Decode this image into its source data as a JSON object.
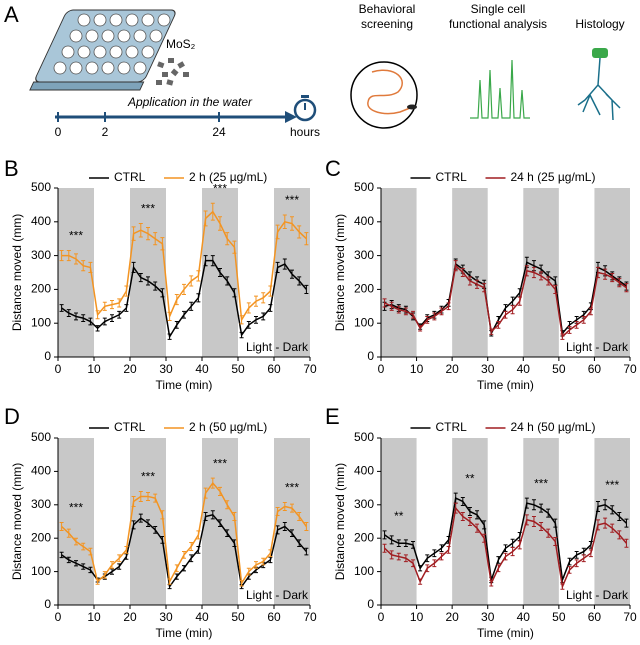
{
  "schematic": {
    "panel": "A",
    "compound": "MoS₂",
    "timeline_label": "Application in the water",
    "timeline_ticks": [
      "0",
      "2",
      "24"
    ],
    "timeline_unit": "hours",
    "methods": [
      [
        "Behavioral",
        "screening"
      ],
      [
        "Single cell",
        "functional analysis"
      ],
      [
        "Histology"
      ]
    ]
  },
  "chart_data": [
    {
      "type": "line",
      "panel": "B",
      "x_label": "Time (min)",
      "y_label": "Distance moved (mm)",
      "annotation_box": "Light - Dark",
      "dark_periods": [
        [
          0,
          10
        ],
        [
          20,
          30
        ],
        [
          40,
          50
        ],
        [
          60,
          70
        ]
      ],
      "annotations": [
        "***",
        "***",
        "***",
        "***"
      ],
      "xlim": [
        0,
        70
      ],
      "ylim": [
        0,
        500
      ],
      "xticks": [
        0,
        10,
        20,
        30,
        40,
        50,
        60,
        70
      ],
      "yticks": [
        0,
        100,
        200,
        300,
        400,
        500
      ],
      "x": [
        1,
        3,
        5,
        7,
        9,
        11,
        13,
        15,
        17,
        19,
        21,
        23,
        25,
        27,
        29,
        31,
        33,
        35,
        37,
        39,
        41,
        43,
        45,
        47,
        49,
        51,
        53,
        55,
        57,
        59,
        61,
        63,
        65,
        67,
        69
      ],
      "series": [
        {
          "name": "CTRL",
          "color": "#000000",
          "values": [
            145,
            130,
            120,
            115,
            105,
            85,
            105,
            115,
            125,
            145,
            265,
            235,
            225,
            210,
            190,
            60,
            95,
            125,
            150,
            175,
            285,
            285,
            250,
            225,
            190,
            65,
            95,
            110,
            120,
            145,
            265,
            275,
            245,
            225,
            200
          ],
          "errors": [
            10,
            10,
            10,
            10,
            10,
            8,
            10,
            10,
            10,
            10,
            15,
            12,
            12,
            12,
            12,
            8,
            10,
            10,
            12,
            12,
            15,
            15,
            12,
            12,
            12,
            8,
            10,
            10,
            10,
            10,
            15,
            15,
            12,
            12,
            12
          ]
        },
        {
          "name": "2 h (25 µg/mL)",
          "color": "#f39422",
          "values": [
            300,
            300,
            290,
            270,
            265,
            125,
            150,
            155,
            160,
            195,
            365,
            375,
            365,
            350,
            335,
            120,
            170,
            200,
            225,
            240,
            410,
            430,
            395,
            350,
            325,
            110,
            145,
            165,
            175,
            195,
            370,
            400,
            395,
            370,
            350
          ],
          "errors": [
            15,
            15,
            15,
            15,
            15,
            12,
            12,
            12,
            12,
            15,
            20,
            20,
            18,
            18,
            18,
            12,
            15,
            15,
            15,
            15,
            22,
            25,
            20,
            18,
            18,
            12,
            15,
            15,
            15,
            15,
            20,
            20,
            20,
            18,
            18
          ]
        }
      ]
    },
    {
      "type": "line",
      "panel": "C",
      "x_label": "Time (min)",
      "y_label": "Distance moved (mm)",
      "annotation_box": "Light - Dark",
      "dark_periods": [
        [
          0,
          10
        ],
        [
          20,
          30
        ],
        [
          40,
          50
        ],
        [
          60,
          70
        ]
      ],
      "annotations": [],
      "xlim": [
        0,
        70
      ],
      "ylim": [
        0,
        500
      ],
      "xticks": [
        0,
        10,
        20,
        30,
        40,
        50,
        60,
        70
      ],
      "yticks": [
        0,
        100,
        200,
        300,
        400,
        500
      ],
      "x": [
        1,
        3,
        5,
        7,
        9,
        11,
        13,
        15,
        17,
        19,
        21,
        23,
        25,
        27,
        29,
        31,
        33,
        35,
        37,
        39,
        41,
        43,
        45,
        47,
        49,
        51,
        53,
        55,
        57,
        59,
        61,
        63,
        65,
        67,
        69
      ],
      "series": [
        {
          "name": "CTRL",
          "color": "#000000",
          "values": [
            150,
            155,
            145,
            140,
            120,
            90,
            115,
            125,
            140,
            160,
            275,
            260,
            240,
            225,
            215,
            70,
            110,
            145,
            165,
            190,
            280,
            270,
            260,
            240,
            225,
            70,
            95,
            110,
            125,
            150,
            265,
            255,
            240,
            225,
            210
          ],
          "errors": [
            12,
            12,
            10,
            10,
            10,
            8,
            10,
            10,
            10,
            10,
            15,
            12,
            12,
            12,
            12,
            8,
            10,
            10,
            12,
            12,
            15,
            15,
            12,
            12,
            12,
            8,
            10,
            10,
            10,
            10,
            15,
            15,
            12,
            12,
            12
          ]
        },
        {
          "name": "24 h (25 µg/mL)",
          "color": "#a11d21",
          "values": [
            160,
            150,
            140,
            135,
            125,
            85,
            110,
            120,
            135,
            150,
            270,
            250,
            225,
            215,
            205,
            75,
            95,
            125,
            140,
            165,
            255,
            250,
            240,
            225,
            200,
            60,
            80,
            95,
            110,
            135,
            250,
            245,
            235,
            220,
            205
          ],
          "errors": [
            12,
            12,
            10,
            10,
            10,
            8,
            10,
            10,
            10,
            10,
            15,
            12,
            12,
            12,
            12,
            8,
            10,
            10,
            12,
            12,
            15,
            15,
            12,
            12,
            12,
            8,
            10,
            10,
            10,
            10,
            15,
            15,
            12,
            12,
            12
          ]
        }
      ]
    },
    {
      "type": "line",
      "panel": "D",
      "x_label": "Time (min)",
      "y_label": "Distance moved (mm)",
      "annotation_box": "Light - Dark",
      "dark_periods": [
        [
          0,
          10
        ],
        [
          20,
          30
        ],
        [
          40,
          50
        ],
        [
          60,
          70
        ]
      ],
      "annotations": [
        "***",
        "***",
        "***",
        "***"
      ],
      "xlim": [
        0,
        70
      ],
      "ylim": [
        0,
        500
      ],
      "xticks": [
        0,
        10,
        20,
        30,
        40,
        50,
        60,
        70
      ],
      "yticks": [
        0,
        100,
        200,
        300,
        400,
        500
      ],
      "x": [
        1,
        3,
        5,
        7,
        9,
        11,
        13,
        15,
        17,
        19,
        21,
        23,
        25,
        27,
        29,
        31,
        33,
        35,
        37,
        39,
        41,
        43,
        45,
        47,
        49,
        51,
        53,
        55,
        57,
        59,
        61,
        63,
        65,
        67,
        69
      ],
      "series": [
        {
          "name": "CTRL",
          "color": "#000000",
          "values": [
            150,
            135,
            125,
            115,
            105,
            75,
            85,
            100,
            115,
            145,
            240,
            260,
            245,
            225,
            195,
            55,
            85,
            110,
            140,
            165,
            265,
            270,
            245,
            215,
            185,
            55,
            85,
            105,
            120,
            135,
            225,
            235,
            215,
            185,
            160
          ],
          "errors": [
            8,
            8,
            8,
            8,
            8,
            6,
            8,
            8,
            8,
            8,
            12,
            12,
            10,
            10,
            10,
            6,
            8,
            8,
            10,
            10,
            12,
            12,
            10,
            10,
            10,
            6,
            8,
            8,
            8,
            8,
            12,
            12,
            10,
            10,
            10
          ]
        },
        {
          "name": "2 h (50 µg/mL)",
          "color": "#f39422",
          "values": [
            235,
            215,
            190,
            175,
            160,
            70,
            90,
            120,
            140,
            165,
            310,
            325,
            325,
            320,
            270,
            70,
            110,
            150,
            175,
            210,
            335,
            365,
            340,
            300,
            265,
            65,
            100,
            120,
            130,
            155,
            280,
            295,
            290,
            265,
            235
          ],
          "errors": [
            12,
            12,
            10,
            10,
            10,
            8,
            10,
            10,
            10,
            10,
            15,
            15,
            12,
            12,
            12,
            8,
            10,
            10,
            12,
            12,
            15,
            15,
            12,
            12,
            12,
            8,
            10,
            10,
            10,
            10,
            12,
            12,
            12,
            12,
            12
          ]
        }
      ]
    },
    {
      "type": "line",
      "panel": "E",
      "x_label": "Time (min)",
      "y_label": "Distance moved (mm)",
      "annotation_box": "Light - Dark",
      "dark_periods": [
        [
          0,
          10
        ],
        [
          20,
          30
        ],
        [
          40,
          50
        ],
        [
          60,
          70
        ]
      ],
      "annotations": [
        "**",
        "**",
        "***",
        "***"
      ],
      "xlim": [
        0,
        70
      ],
      "ylim": [
        0,
        500
      ],
      "xticks": [
        0,
        10,
        20,
        30,
        40,
        50,
        60,
        70
      ],
      "yticks": [
        0,
        100,
        200,
        300,
        400,
        500
      ],
      "x": [
        1,
        3,
        5,
        7,
        9,
        11,
        13,
        15,
        17,
        19,
        21,
        23,
        25,
        27,
        29,
        31,
        33,
        35,
        37,
        39,
        41,
        43,
        45,
        47,
        49,
        51,
        53,
        55,
        57,
        59,
        61,
        63,
        65,
        67,
        69
      ],
      "series": [
        {
          "name": "CTRL",
          "color": "#000000",
          "values": [
            210,
            195,
            185,
            185,
            180,
            110,
            140,
            155,
            170,
            195,
            320,
            310,
            280,
            270,
            240,
            75,
            135,
            170,
            185,
            205,
            305,
            300,
            290,
            275,
            245,
            75,
            130,
            150,
            160,
            180,
            295,
            300,
            285,
            265,
            245
          ],
          "errors": [
            12,
            12,
            10,
            10,
            10,
            8,
            10,
            10,
            10,
            10,
            15,
            12,
            12,
            12,
            12,
            8,
            10,
            10,
            12,
            12,
            15,
            15,
            12,
            12,
            12,
            8,
            10,
            10,
            10,
            10,
            15,
            15,
            12,
            12,
            12
          ]
        },
        {
          "name": "24 h (50 µg/mL)",
          "color": "#a11d21",
          "values": [
            170,
            150,
            145,
            140,
            125,
            70,
            110,
            125,
            145,
            165,
            290,
            265,
            250,
            230,
            200,
            65,
            110,
            145,
            160,
            180,
            255,
            250,
            235,
            215,
            190,
            55,
            105,
            125,
            140,
            155,
            240,
            245,
            230,
            210,
            185
          ],
          "errors": [
            12,
            12,
            10,
            10,
            10,
            8,
            10,
            10,
            10,
            10,
            15,
            12,
            12,
            12,
            12,
            8,
            10,
            10,
            12,
            12,
            15,
            15,
            12,
            12,
            12,
            8,
            10,
            10,
            10,
            10,
            15,
            15,
            12,
            12,
            12
          ]
        }
      ]
    }
  ]
}
